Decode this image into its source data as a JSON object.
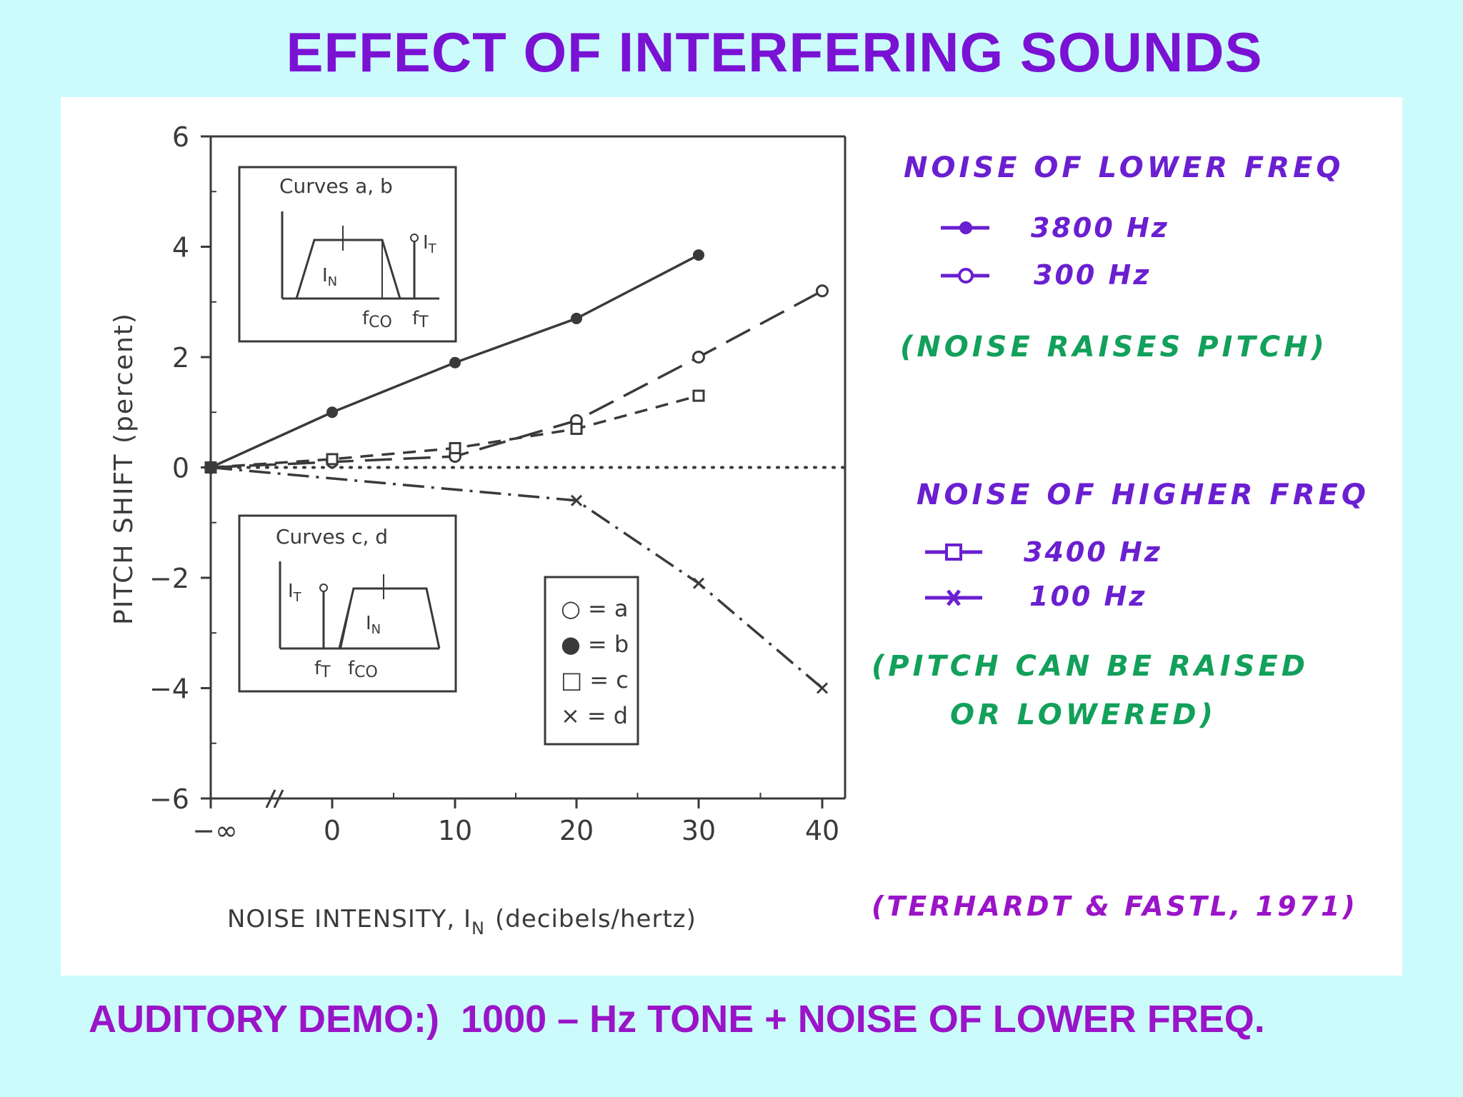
{
  "slide": {
    "title": "EFFECT OF INTERFERING SOUNDS",
    "footer": "AUDITORY DEMO:)  1000 – Hz TONE + NOISE OF LOWER FREQ."
  },
  "colors": {
    "background": "#ccfbfb",
    "title": "#7a12d4",
    "footer": "#9a14c8",
    "note_purple": "#6a1fd0",
    "note_green": "#12a05a",
    "chart_ink": "#3a3a3a"
  },
  "annotations": {
    "lower_heading": "NOISE OF LOWER FREQ",
    "lower_item1": "3800 Hz",
    "lower_item2": "300 Hz",
    "lower_note": "(NOISE RAISES PITCH)",
    "higher_heading": "NOISE OF HIGHER FREQ",
    "higher_item1": "3400 Hz",
    "higher_item2": "100 Hz",
    "higher_note_line1": "(PITCH CAN BE RAISED",
    "higher_note_line2": "OR LOWERED)",
    "citation": "(TERHARDT & FASTL, 1971)"
  },
  "chart_data": {
    "type": "line",
    "xlabel": "NOISE INTENSITY, I",
    "xlabel_sub": "N",
    "xlabel_unit": "(decibels/hertz)",
    "ylabel": "PITCH SHIFT (percent)",
    "x_ticks": [
      "−∞",
      "0",
      "10",
      "20",
      "30",
      "40"
    ],
    "y_ticks": [
      "6",
      "4",
      "2",
      "0",
      "−2",
      "−4",
      "−6"
    ],
    "xlim": [
      -10,
      40
    ],
    "ylim": [
      -6,
      6
    ],
    "reference_line": 0,
    "series": [
      {
        "name": "a",
        "marker": "open-circle",
        "dash": "long",
        "x": [
          -10,
          0,
          10,
          20,
          30,
          40
        ],
        "y": [
          0,
          0.1,
          0.2,
          0.85,
          2.0,
          3.2
        ]
      },
      {
        "name": "b",
        "marker": "filled-circle",
        "dash": "solid",
        "x": [
          -10,
          0,
          10,
          20,
          30
        ],
        "y": [
          0,
          1.0,
          1.9,
          2.7,
          3.85
        ]
      },
      {
        "name": "c",
        "marker": "open-square",
        "dash": "short",
        "x": [
          -10,
          0,
          10,
          20,
          30
        ],
        "y": [
          0,
          0.15,
          0.35,
          0.7,
          1.3
        ]
      },
      {
        "name": "d",
        "marker": "cross",
        "dash": "dashdot",
        "x": [
          -10,
          20,
          30,
          40
        ],
        "y": [
          0,
          -0.6,
          -2.1,
          -4.0
        ]
      }
    ],
    "legend": [
      {
        "symbol": "○",
        "label": "= a"
      },
      {
        "symbol": "●",
        "label": "= b"
      },
      {
        "symbol": "□",
        "label": "= c"
      },
      {
        "symbol": "×",
        "label": "= d"
      }
    ],
    "inset_ab": {
      "title": "Curves a, b",
      "label_noise": "I",
      "label_noise_sub": "N",
      "label_tone": "I",
      "label_tone_sub": "T",
      "label_fco": "f",
      "label_fco_sub": "CO",
      "label_ft": "f",
      "label_ft_sub": "T"
    },
    "inset_cd": {
      "title": "Curves c, d",
      "label_noise": "I",
      "label_noise_sub": "N",
      "label_tone": "I",
      "label_tone_sub": "T",
      "label_fco": "f",
      "label_fco_sub": "CO",
      "label_ft": "f",
      "label_ft_sub": "T"
    }
  }
}
